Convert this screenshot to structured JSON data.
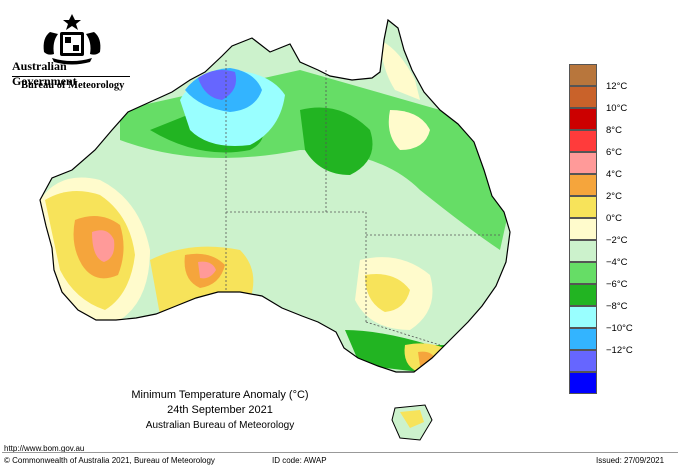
{
  "header": {
    "government": "Australian Government",
    "bureau": "Bureau of Meteorology"
  },
  "map_title": {
    "line1": "Minimum Temperature Anomaly (°C)",
    "line2": "24th September 2021",
    "line3": "Australian Bureau of Meteorology"
  },
  "legend": [
    {
      "label": "12°C",
      "color": "#c9622a"
    },
    {
      "label": "10°C",
      "color": "#cc0000"
    },
    {
      "label": "8°C",
      "color": "#ff3b3b"
    },
    {
      "label": "6°C",
      "color": "#ff9a99"
    },
    {
      "label": "4°C",
      "color": "#f5a53c"
    },
    {
      "label": "2°C",
      "color": "#f7e35a"
    },
    {
      "label": "0°C",
      "color": "#fffbcc"
    },
    {
      "label": "−2°C",
      "color": "#ccf2cc"
    },
    {
      "label": "−4°C",
      "color": "#66dd66"
    },
    {
      "label": "−6°C",
      "color": "#22b422"
    },
    {
      "label": "−8°C",
      "color": "#99ffff"
    },
    {
      "label": "−10°C",
      "color": "#33b4ff"
    },
    {
      "label": "−12°C",
      "color": "#6666ff"
    },
    {
      "label": "",
      "color": "#0000ff"
    }
  ],
  "legend_top_color": "#b8763c",
  "footer": {
    "url": "http://www.bom.gov.au",
    "copyright": "© Commonwealth of Australia 2021, Bureau of Meteorology",
    "id_code": "ID code: AWAP",
    "issued": "Issued: 27/09/2021"
  }
}
